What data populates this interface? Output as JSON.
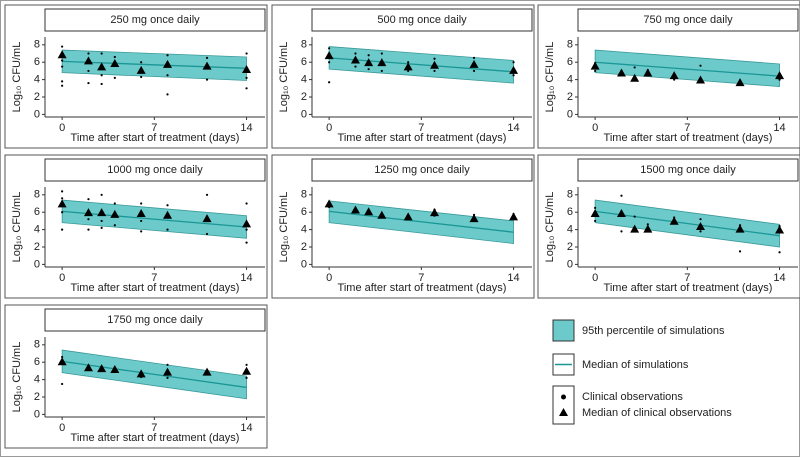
{
  "chart_data": [
    {
      "type": "simulation_band",
      "title": "250 mg once daily",
      "xlabel": "Time after start of treatment (days)",
      "ylabel": "Log₁₀ CFU/mL",
      "xlim": [
        -1.3,
        15.4
      ],
      "ylim": [
        -0.3,
        8.9
      ],
      "xticks": [
        0,
        7,
        14
      ],
      "yticks": [
        0,
        2,
        4,
        6,
        8
      ],
      "band": {
        "x": [
          0,
          14
        ],
        "lower": [
          4.8,
          3.9
        ],
        "upper": [
          7.4,
          6.6
        ],
        "color": "#6ccaca"
      },
      "median": {
        "x": [
          0,
          14
        ],
        "values": [
          6.1,
          5.3
        ],
        "color": "#1b9696"
      },
      "observations": {
        "x": [
          0,
          0,
          0,
          0,
          0,
          2,
          2,
          2,
          3,
          3,
          3,
          4,
          4,
          6,
          6,
          8,
          8,
          8,
          11,
          11,
          14,
          14,
          14
        ],
        "values": [
          7.8,
          6.2,
          5.5,
          3.8,
          3.3,
          7.0,
          5.0,
          3.6,
          7.0,
          4.5,
          3.5,
          6.6,
          4.2,
          6.0,
          4.3,
          6.8,
          4.5,
          2.3,
          6.5,
          4.0,
          7.0,
          4.2,
          3.0
        ]
      },
      "observation_medians": {
        "x": [
          0,
          2,
          3,
          4,
          6,
          8,
          11,
          14
        ],
        "values": [
          6.8,
          6.1,
          5.4,
          5.8,
          5.0,
          5.7,
          5.5,
          5.1
        ]
      }
    },
    {
      "type": "simulation_band",
      "title": "500 mg once daily",
      "xlabel": "Time after start of treatment (days)",
      "ylabel": "Log₁₀ CFU/mL",
      "xlim": [
        -1.3,
        15.4
      ],
      "ylim": [
        -0.3,
        8.9
      ],
      "xticks": [
        0,
        7,
        14
      ],
      "yticks": [
        0,
        2,
        4,
        6,
        8
      ],
      "band": {
        "x": [
          0,
          14
        ],
        "lower": [
          5.2,
          3.6
        ],
        "upper": [
          7.8,
          6.2
        ],
        "color": "#6ccaca"
      },
      "median": {
        "x": [
          0,
          14
        ],
        "values": [
          6.5,
          4.9
        ],
        "color": "#1b9696"
      },
      "observations": {
        "x": [
          0,
          0,
          0,
          2,
          2,
          3,
          3,
          4,
          4,
          6,
          6,
          8,
          8,
          11,
          11,
          14,
          14
        ],
        "values": [
          7.6,
          6.0,
          3.7,
          7.0,
          5.5,
          6.8,
          5.2,
          7.0,
          5.0,
          6.0,
          5.0,
          6.4,
          5.0,
          6.5,
          5.0,
          6.0,
          4.5
        ]
      },
      "observation_medians": {
        "x": [
          0,
          2,
          3,
          4,
          6,
          8,
          11,
          14
        ],
        "values": [
          6.7,
          6.2,
          5.9,
          5.9,
          5.4,
          5.6,
          5.7,
          5.0
        ]
      }
    },
    {
      "type": "simulation_band",
      "title": "750 mg once daily",
      "xlabel": "Time after start of treatment (days)",
      "ylabel": "Log₁₀ CFU/mL",
      "xlim": [
        -1.3,
        15.4
      ],
      "ylim": [
        -0.3,
        8.9
      ],
      "xticks": [
        0,
        7,
        14
      ],
      "yticks": [
        0,
        2,
        4,
        6,
        8
      ],
      "band": {
        "x": [
          0,
          14
        ],
        "lower": [
          4.8,
          3.2
        ],
        "upper": [
          7.4,
          5.8
        ],
        "color": "#6ccaca"
      },
      "median": {
        "x": [
          0,
          14
        ],
        "values": [
          6.0,
          4.4
        ],
        "color": "#1b9696"
      },
      "observations": {
        "x": [
          0,
          0,
          2,
          3,
          4,
          6,
          8,
          11,
          14
        ],
        "values": [
          5.9,
          5.0,
          5.0,
          5.4,
          5.1,
          4.0,
          5.6,
          3.9,
          4.0
        ]
      },
      "observation_medians": {
        "x": [
          0,
          2,
          3,
          4,
          6,
          8,
          11,
          14
        ],
        "values": [
          5.5,
          4.7,
          4.1,
          4.7,
          4.4,
          3.9,
          3.6,
          4.4
        ]
      }
    },
    {
      "type": "simulation_band",
      "title": "1000 mg once daily",
      "xlabel": "Time after start of treatment (days)",
      "ylabel": "Log₁₀ CFU/mL",
      "xlim": [
        -1.3,
        15.4
      ],
      "ylim": [
        -0.3,
        8.9
      ],
      "xticks": [
        0,
        7,
        14
      ],
      "yticks": [
        0,
        2,
        4,
        6,
        8
      ],
      "band": {
        "x": [
          0,
          14
        ],
        "lower": [
          4.8,
          3.0
        ],
        "upper": [
          7.4,
          5.6
        ],
        "color": "#6ccaca"
      },
      "median": {
        "x": [
          0,
          14
        ],
        "values": [
          6.1,
          4.3
        ],
        "color": "#1b9696"
      },
      "observations": {
        "x": [
          0,
          0,
          0,
          0,
          2,
          2,
          2,
          3,
          3,
          3,
          4,
          4,
          6,
          6,
          6,
          8,
          8,
          11,
          11,
          11,
          14,
          14,
          14
        ],
        "values": [
          8.4,
          7.6,
          6.0,
          4.0,
          7.5,
          5.2,
          4.0,
          8.0,
          5.0,
          4.2,
          7.0,
          4.5,
          7.0,
          5.0,
          3.8,
          6.8,
          4.0,
          8.0,
          5.0,
          3.5,
          7.0,
          4.0,
          2.5
        ]
      },
      "observation_medians": {
        "x": [
          0,
          2,
          3,
          4,
          6,
          8,
          11,
          14
        ],
        "values": [
          6.9,
          5.9,
          5.9,
          5.7,
          5.8,
          5.6,
          5.2,
          4.6
        ]
      }
    },
    {
      "type": "simulation_band",
      "title": "1250 mg once daily",
      "xlabel": "Time after start of treatment (days)",
      "ylabel": "Log₁₀ CFU/mL",
      "xlim": [
        -1.3,
        15.4
      ],
      "ylim": [
        -0.3,
        8.9
      ],
      "xticks": [
        0,
        7,
        14
      ],
      "yticks": [
        0,
        2,
        4,
        6,
        8
      ],
      "band": {
        "x": [
          0,
          14
        ],
        "lower": [
          4.8,
          2.4
        ],
        "upper": [
          7.3,
          5.0
        ],
        "color": "#6ccaca"
      },
      "median": {
        "x": [
          0,
          14
        ],
        "values": [
          6.1,
          3.7
        ],
        "color": "#1b9696"
      },
      "observations": {
        "x": [
          0,
          8,
          8,
          11,
          14
        ],
        "values": [
          6.6,
          6.3,
          5.6,
          5.7,
          5.8
        ]
      },
      "observation_medians": {
        "x": [
          0,
          2,
          3,
          4,
          6,
          8,
          11,
          14
        ],
        "values": [
          6.9,
          6.2,
          6.0,
          5.6,
          5.4,
          5.9,
          5.2,
          5.4
        ]
      }
    },
    {
      "type": "simulation_band",
      "title": "1500 mg once daily",
      "xlabel": "Time after start of treatment (days)",
      "ylabel": "Log₁₀ CFU/mL",
      "xlim": [
        -1.3,
        15.4
      ],
      "ylim": [
        -0.3,
        8.9
      ],
      "xticks": [
        0,
        7,
        14
      ],
      "yticks": [
        0,
        2,
        4,
        6,
        8
      ],
      "band": {
        "x": [
          0,
          14
        ],
        "lower": [
          4.8,
          2.0
        ],
        "upper": [
          7.4,
          4.6
        ],
        "color": "#6ccaca"
      },
      "median": {
        "x": [
          0,
          14
        ],
        "values": [
          6.1,
          3.3
        ],
        "color": "#1b9696"
      },
      "observations": {
        "x": [
          0,
          0,
          2,
          2,
          3,
          4,
          6,
          8,
          8,
          11,
          11,
          14,
          14
        ],
        "values": [
          6.5,
          5.0,
          7.9,
          3.8,
          5.5,
          4.6,
          5.4,
          5.2,
          3.8,
          4.5,
          1.5,
          4.4,
          1.4
        ]
      },
      "observation_medians": {
        "x": [
          0,
          2,
          3,
          4,
          6,
          8,
          11,
          14
        ],
        "values": [
          5.8,
          5.8,
          4.0,
          4.0,
          4.9,
          4.3,
          4.0,
          3.9
        ]
      }
    },
    {
      "type": "simulation_band",
      "title": "1750 mg once daily",
      "xlabel": "Time after start of treatment (days)",
      "ylabel": "Log₁₀ CFU/mL",
      "xlim": [
        -1.3,
        15.4
      ],
      "ylim": [
        -0.3,
        8.9
      ],
      "xticks": [
        0,
        7,
        14
      ],
      "yticks": [
        0,
        2,
        4,
        6,
        8
      ],
      "band": {
        "x": [
          0,
          14
        ],
        "lower": [
          4.8,
          1.8
        ],
        "upper": [
          7.4,
          4.4
        ],
        "color": "#6ccaca"
      },
      "median": {
        "x": [
          0,
          14
        ],
        "values": [
          6.1,
          3.1
        ],
        "color": "#1b9696"
      },
      "observations": {
        "x": [
          0,
          0,
          2,
          3,
          4,
          6,
          8,
          8,
          11,
          14,
          14
        ],
        "values": [
          6.6,
          3.5,
          5.6,
          5.5,
          5.3,
          4.3,
          5.7,
          4.2,
          5.0,
          5.7,
          4.2
        ]
      },
      "observation_medians": {
        "x": [
          0,
          2,
          3,
          4,
          6,
          8,
          11,
          14
        ],
        "values": [
          6.0,
          5.3,
          5.2,
          5.1,
          4.6,
          4.8,
          4.8,
          4.9
        ]
      }
    }
  ],
  "legend": {
    "band": "95th percentile of simulations",
    "median": "Median of simulations",
    "observations": "Clinical observations",
    "observation_medians": "Median of clinical observations"
  }
}
